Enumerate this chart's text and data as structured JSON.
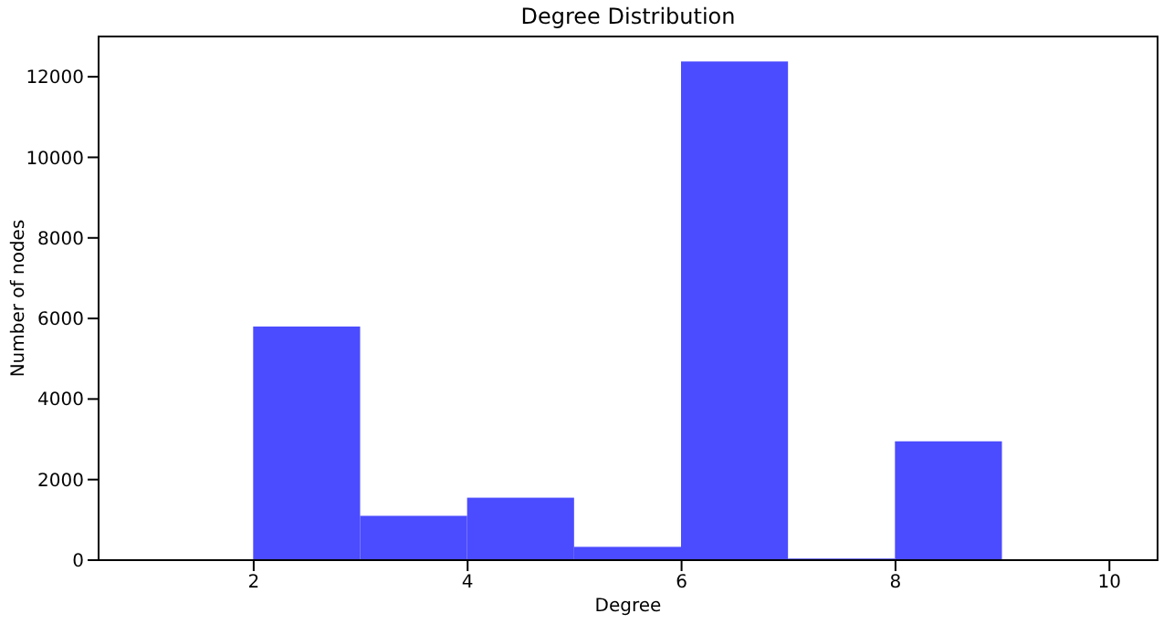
{
  "chart_data": {
    "type": "histogram",
    "title": "Degree Distribution",
    "xlabel": "Degree",
    "ylabel": "Number of nodes",
    "bins": [
      1,
      2,
      3,
      4,
      5,
      6,
      7,
      8,
      9,
      10
    ],
    "values": [
      0,
      5800,
      1100,
      1550,
      330,
      12380,
      40,
      2950,
      20
    ],
    "color": "#4b4bff",
    "xlim": [
      0.55,
      10.45
    ],
    "xticks": [
      2,
      4,
      6,
      8,
      10
    ],
    "ylim": [
      0,
      13000
    ],
    "yticks": [
      0,
      2000,
      4000,
      6000,
      8000,
      10000,
      12000
    ],
    "grid": false,
    "legend": false
  }
}
